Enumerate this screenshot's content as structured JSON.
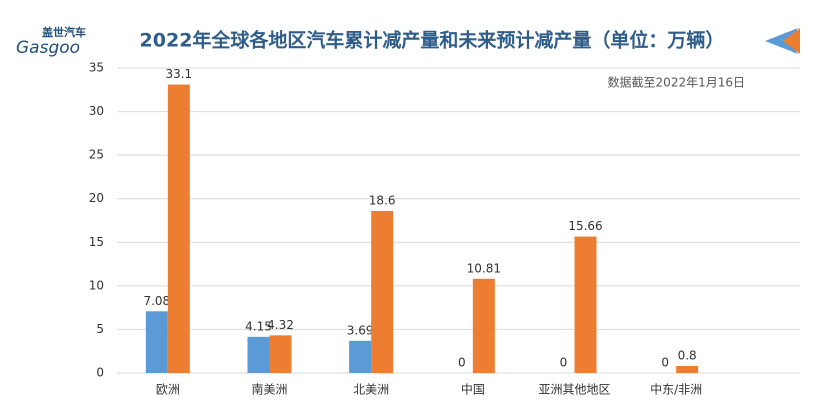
{
  "logo": {
    "name": "盖世汽车",
    "brand": "Gasgoo"
  },
  "chart_data": {
    "type": "bar",
    "title": "2022年全球各地区汽车累计减产量和未来预计减产量（单位：万辆）",
    "annotation": "数据截至2022年1月16日",
    "categories": [
      "欧洲",
      "南美洲",
      "北美洲",
      "中国",
      "亚洲其他地区",
      "中东/非洲"
    ],
    "series": [
      {
        "color": "#5b9bd5",
        "values": [
          7.08,
          4.15,
          3.69,
          0,
          0,
          0
        ]
      },
      {
        "color": "#ed7d31",
        "values": [
          33.1,
          4.32,
          18.6,
          10.81,
          15.66,
          0.8
        ]
      }
    ],
    "ylim": [
      0,
      35
    ],
    "yticks": [
      0,
      5,
      10,
      15,
      20,
      25,
      30,
      35
    ],
    "grid": true
  }
}
